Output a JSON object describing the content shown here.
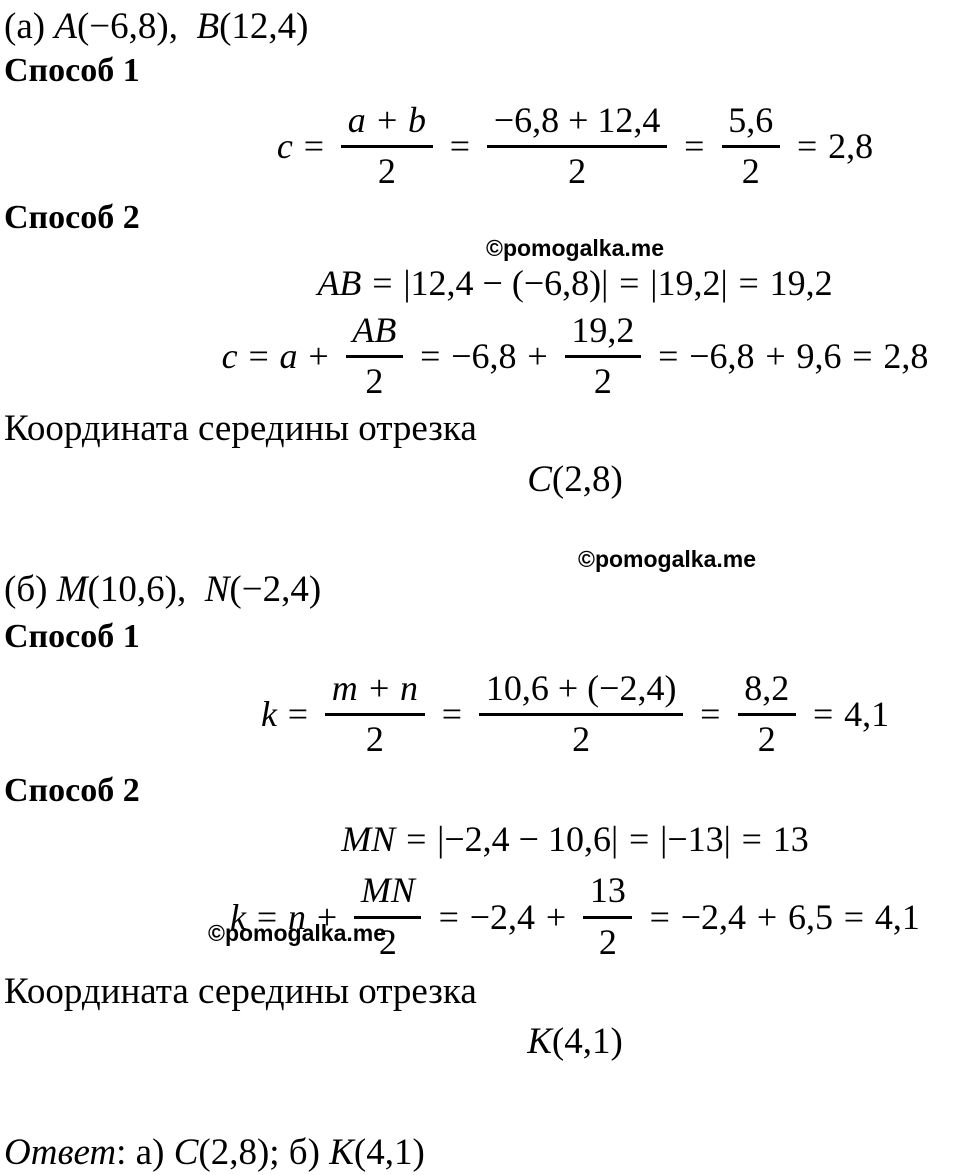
{
  "watermark": "©pomogalka.me",
  "part_a": {
    "given": [
      {
        "t": "p",
        "v": "(а) "
      },
      {
        "t": "v",
        "v": "A"
      },
      {
        "t": "n",
        "v": "(−6,8),  "
      },
      {
        "t": "v",
        "v": "B"
      },
      {
        "t": "n",
        "v": "(12,4)"
      }
    ],
    "method1_label": "Способ 1",
    "method2_label": "Способ 2",
    "formula_direct": [
      {
        "t": "v",
        "v": "c"
      },
      {
        "t": "o",
        "v": "="
      },
      {
        "t": "f",
        "num": "a + b",
        "den": "2",
        "ni": true
      },
      {
        "t": "o",
        "v": "="
      },
      {
        "t": "f",
        "num": "−6,8 + 12,4",
        "den": "2"
      },
      {
        "t": "o",
        "v": "="
      },
      {
        "t": "f",
        "num": "5,6",
        "den": "2"
      },
      {
        "t": "o",
        "v": "="
      },
      {
        "t": "n",
        "v": "2,8"
      }
    ],
    "formula_length": [
      {
        "t": "v",
        "v": "AB"
      },
      {
        "t": "o",
        "v": "="
      },
      {
        "t": "n",
        "v": "|12,4 − (−6,8)|"
      },
      {
        "t": "o",
        "v": "="
      },
      {
        "t": "n",
        "v": "|19,2|"
      },
      {
        "t": "o",
        "v": "="
      },
      {
        "t": "n",
        "v": "19,2"
      }
    ],
    "formula_half": [
      {
        "t": "v",
        "v": "c"
      },
      {
        "t": "o",
        "v": "="
      },
      {
        "t": "v",
        "v": "a"
      },
      {
        "t": "o",
        "v": "+"
      },
      {
        "t": "f",
        "num": "AB",
        "den": "2",
        "ni": true
      },
      {
        "t": "o",
        "v": "="
      },
      {
        "t": "n",
        "v": "−6,8"
      },
      {
        "t": "o",
        "v": "+"
      },
      {
        "t": "f",
        "num": "19,2",
        "den": "2"
      },
      {
        "t": "o",
        "v": "="
      },
      {
        "t": "n",
        "v": "−6,8"
      },
      {
        "t": "o",
        "v": "+"
      },
      {
        "t": "n",
        "v": "9,6"
      },
      {
        "t": "o",
        "v": "="
      },
      {
        "t": "n",
        "v": "2,8"
      }
    ],
    "caption": "Координата середины отрезка",
    "result": [
      {
        "t": "v",
        "v": "C"
      },
      {
        "t": "n",
        "v": "(2,8)"
      }
    ]
  },
  "part_b": {
    "given": [
      {
        "t": "p",
        "v": "(б) "
      },
      {
        "t": "v",
        "v": "M"
      },
      {
        "t": "n",
        "v": "(10,6),  "
      },
      {
        "t": "v",
        "v": "N"
      },
      {
        "t": "n",
        "v": "(−2,4)"
      }
    ],
    "method1_label": "Способ 1",
    "method2_label": "Способ 2",
    "formula_direct": [
      {
        "t": "v",
        "v": "k"
      },
      {
        "t": "o",
        "v": "="
      },
      {
        "t": "f",
        "num": "m + n",
        "den": "2",
        "ni": true
      },
      {
        "t": "o",
        "v": "="
      },
      {
        "t": "f",
        "num": "10,6 + (−2,4)",
        "den": "2"
      },
      {
        "t": "o",
        "v": "="
      },
      {
        "t": "f",
        "num": "8,2",
        "den": "2"
      },
      {
        "t": "o",
        "v": "="
      },
      {
        "t": "n",
        "v": "4,1"
      }
    ],
    "formula_length": [
      {
        "t": "v",
        "v": "MN"
      },
      {
        "t": "o",
        "v": "="
      },
      {
        "t": "n",
        "v": "|−2,4 − 10,6|"
      },
      {
        "t": "o",
        "v": "="
      },
      {
        "t": "n",
        "v": "|−13|"
      },
      {
        "t": "o",
        "v": "="
      },
      {
        "t": "n",
        "v": "13"
      }
    ],
    "formula_half": [
      {
        "t": "v",
        "v": "k"
      },
      {
        "t": "o",
        "v": "="
      },
      {
        "t": "v",
        "v": "n"
      },
      {
        "t": "o",
        "v": "+"
      },
      {
        "t": "f",
        "num": "MN",
        "den": "2",
        "ni": true
      },
      {
        "t": "o",
        "v": "="
      },
      {
        "t": "n",
        "v": "−2,4"
      },
      {
        "t": "o",
        "v": "+"
      },
      {
        "t": "f",
        "num": "13",
        "den": "2"
      },
      {
        "t": "o",
        "v": "="
      },
      {
        "t": "n",
        "v": "−2,4"
      },
      {
        "t": "o",
        "v": "+"
      },
      {
        "t": "n",
        "v": "6,5"
      },
      {
        "t": "o",
        "v": "="
      },
      {
        "t": "n",
        "v": "4,1"
      }
    ],
    "caption": "Координата середины отрезка",
    "result": [
      {
        "t": "v",
        "v": "K"
      },
      {
        "t": "n",
        "v": "(4,1)"
      }
    ]
  },
  "answer": [
    {
      "t": "i",
      "v": "Ответ"
    },
    {
      "t": "n",
      "v": ": а) "
    },
    {
      "t": "v",
      "v": "C"
    },
    {
      "t": "n",
      "v": "(2,8); б) "
    },
    {
      "t": "v",
      "v": "K"
    },
    {
      "t": "n",
      "v": "(4,1)"
    }
  ]
}
